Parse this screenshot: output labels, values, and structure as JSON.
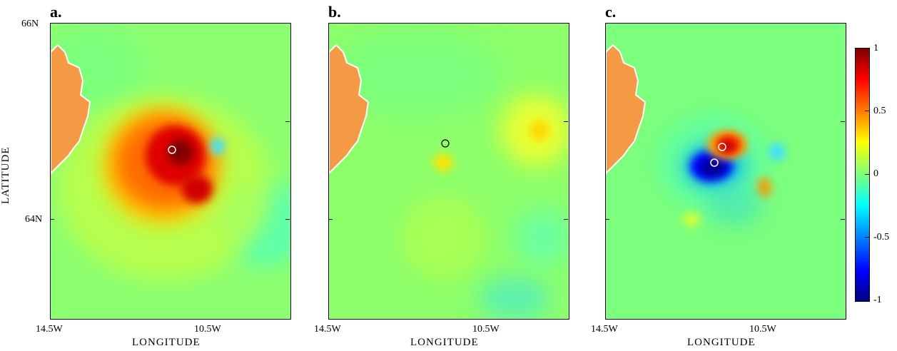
{
  "figure": {
    "ylabel": "LATITUDE",
    "colorbar": {
      "ticks": [
        "1",
        "0.5",
        "0",
        "-0.5",
        "-1"
      ],
      "colormap": "jet",
      "range": [
        -1,
        1
      ]
    },
    "panels": [
      {
        "label": "a.",
        "xlabel": "LONGITUDE",
        "xticks": [
          "14.5W",
          "10.5W"
        ],
        "yticks": [
          "66N",
          "64N"
        ],
        "markers": [
          {
            "lon": "11.8W",
            "lat": "64.9N",
            "color": "#ffffff"
          }
        ]
      },
      {
        "label": "b.",
        "xlabel": "LONGITUDE",
        "xticks": [
          "14.5W",
          "10.5W"
        ],
        "yticks": [],
        "markers": [
          {
            "lon": "11.6W",
            "lat": "65.0N",
            "color": "#000000"
          }
        ]
      },
      {
        "label": "c.",
        "xlabel": "LONGITUDE",
        "xticks": [
          "14.5W",
          "10.5W"
        ],
        "yticks": [],
        "markers": [
          {
            "lon": "11.4W",
            "lat": "65.0N",
            "color": "#ffffff"
          },
          {
            "lon": "11.9W",
            "lat": "64.8N",
            "color": "#ffffff"
          }
        ]
      }
    ],
    "land_color": "#f49a45"
  }
}
